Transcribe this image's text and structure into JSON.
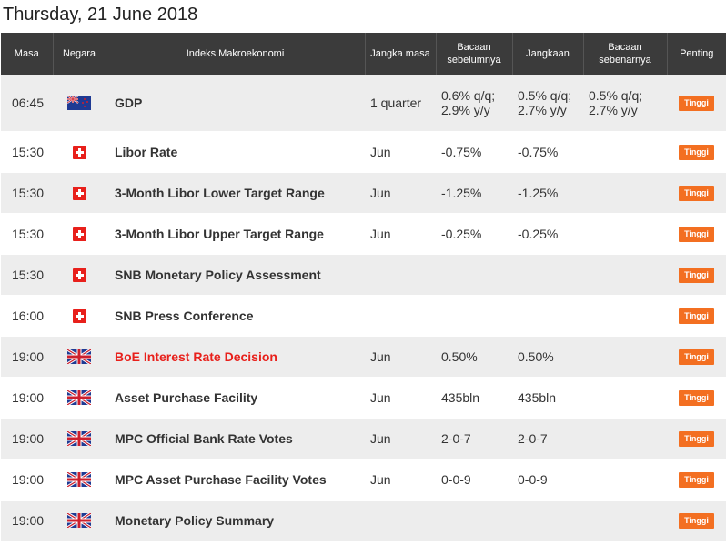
{
  "page": {
    "title": "Thursday, 21 June 2018"
  },
  "table": {
    "headers": {
      "time": "Masa",
      "country": "Negara",
      "indicator": "Indeks Makroekonomi",
      "period": "Jangka masa",
      "previous": "Bacaan sebelumnya",
      "forecast": "Jangkaan",
      "actual": "Bacaan sebenarnya",
      "importance": "Penting"
    },
    "rows": [
      {
        "time": "06:45",
        "country": "nz-flag-icon",
        "indicator": "GDP",
        "period": "1 quarter",
        "previous": "0.6% q/q; 2.9% y/y",
        "forecast": "0.5% q/q; 2.7% y/y",
        "actual": "0.5% q/q; 2.7% y/y",
        "importance": "Tinggi"
      },
      {
        "time": "15:30",
        "country": "swiss-flag-icon",
        "indicator": "Libor Rate",
        "period": "Jun",
        "previous": "-0.75%",
        "forecast": "-0.75%",
        "actual": "",
        "importance": "Tinggi"
      },
      {
        "time": "15:30",
        "country": "swiss-flag-icon",
        "indicator": "3-Month Libor Lower Target Range",
        "period": "Jun",
        "previous": "-1.25%",
        "forecast": "-1.25%",
        "actual": "",
        "importance": "Tinggi"
      },
      {
        "time": "15:30",
        "country": "swiss-flag-icon",
        "indicator": "3-Month Libor Upper Target Range",
        "period": "Jun",
        "previous": "-0.25%",
        "forecast": "-0.25%",
        "actual": "",
        "importance": "Tinggi"
      },
      {
        "time": "15:30",
        "country": "swiss-flag-icon",
        "indicator": "SNB Monetary Policy Assessment",
        "period": "",
        "previous": "",
        "forecast": "",
        "actual": "",
        "importance": "Tinggi"
      },
      {
        "time": "16:00",
        "country": "swiss-flag-icon",
        "indicator": "SNB Press Conference",
        "period": "",
        "previous": "",
        "forecast": "",
        "actual": "",
        "importance": "Tinggi"
      },
      {
        "time": "19:00",
        "country": "uk-flag-icon",
        "indicator": "BoE Interest Rate Decision",
        "period": "Jun",
        "previous": "0.50%",
        "forecast": "0.50%",
        "actual": "",
        "importance": "Tinggi"
      },
      {
        "time": "19:00",
        "country": "uk-flag-icon",
        "indicator": "Asset Purchase Facility",
        "period": "Jun",
        "previous": "435bln",
        "forecast": "435bln",
        "actual": "",
        "importance": "Tinggi"
      },
      {
        "time": "19:00",
        "country": "uk-flag-icon",
        "indicator": "MPC Official Bank Rate Votes",
        "period": "Jun",
        "previous": "2-0-7",
        "forecast": "2-0-7",
        "actual": "",
        "importance": "Tinggi"
      },
      {
        "time": "19:00",
        "country": "uk-flag-icon",
        "indicator": "MPC Asset Purchase Facility Votes",
        "period": "Jun",
        "previous": "0-0-9",
        "forecast": "0-0-9",
        "actual": "",
        "importance": "Tinggi"
      },
      {
        "time": "19:00",
        "country": "uk-flag-icon",
        "indicator": "Monetary Policy Summary",
        "period": "",
        "previous": "",
        "forecast": "",
        "actual": "",
        "importance": "Tinggi"
      }
    ]
  },
  "colors": {
    "header_bg": "#3b3b3b",
    "row_alt_bg": "#ededed",
    "badge_bg": "#f36f21",
    "highlight_text": "#e8201b"
  }
}
